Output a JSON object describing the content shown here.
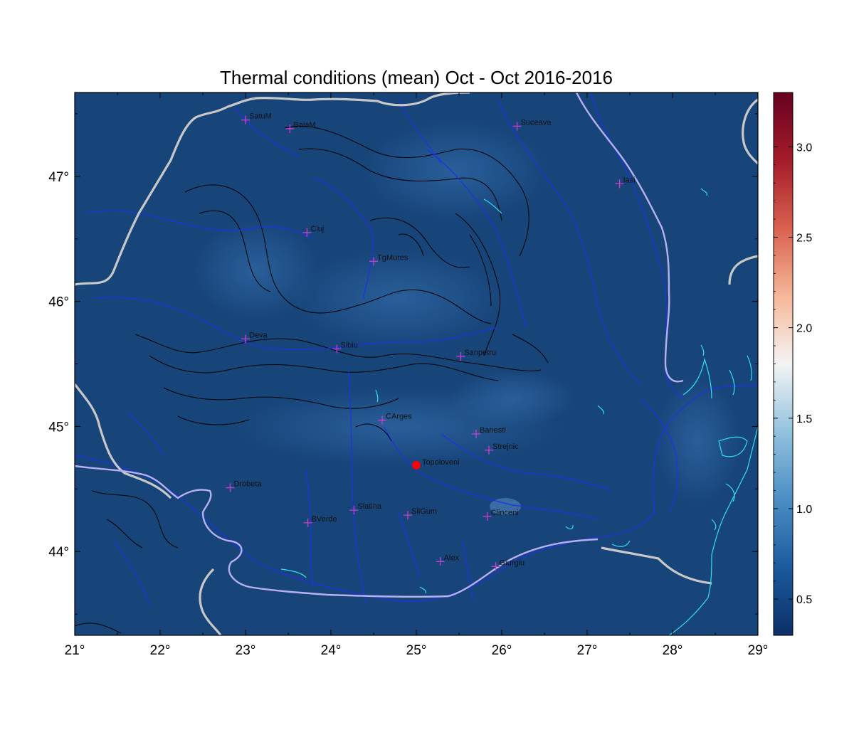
{
  "title": "Thermal conditions (mean) Oct - Oct  2016-2016",
  "map": {
    "lon_range": [
      21,
      29
    ],
    "lat_range": [
      43.33,
      47.67
    ],
    "lon_ticks": [
      {
        "value": 21,
        "label": "21°"
      },
      {
        "value": 22,
        "label": "22°"
      },
      {
        "value": 23,
        "label": "23°"
      },
      {
        "value": 24,
        "label": "24°"
      },
      {
        "value": 25,
        "label": "25°"
      },
      {
        "value": 26,
        "label": "26°"
      },
      {
        "value": 27,
        "label": "27°"
      },
      {
        "value": 28,
        "label": "28°"
      },
      {
        "value": 29,
        "label": "29°"
      }
    ],
    "lat_ticks": [
      {
        "value": 44,
        "label": "44°"
      },
      {
        "value": 45,
        "label": "45°"
      },
      {
        "value": 46,
        "label": "46°"
      },
      {
        "value": 47,
        "label": "47°"
      }
    ],
    "field_color": "#17457a",
    "border_color": "#c8c8c8",
    "river_color": "#1e32e6",
    "contour_color": "#000000",
    "lake_color": "#33e0f0",
    "station_marker_color": "#c040c8",
    "highlight_color": "#ff0000"
  },
  "stations": [
    {
      "name": "SatuM",
      "lon": 23.0,
      "lat": 47.45
    },
    {
      "name": "BaiaM",
      "lon": 23.52,
      "lat": 47.38
    },
    {
      "name": "Suceava",
      "lon": 26.18,
      "lat": 47.4
    },
    {
      "name": "Iasi",
      "lon": 27.38,
      "lat": 46.94
    },
    {
      "name": "Cluj",
      "lon": 23.72,
      "lat": 46.55
    },
    {
      "name": "TgMures",
      "lon": 24.5,
      "lat": 46.32
    },
    {
      "name": "Deva",
      "lon": 23.0,
      "lat": 45.7
    },
    {
      "name": "Sibiu",
      "lon": 24.07,
      "lat": 45.62
    },
    {
      "name": "Sanpetru",
      "lon": 25.52,
      "lat": 45.56
    },
    {
      "name": "CArges",
      "lon": 24.6,
      "lat": 45.05
    },
    {
      "name": "Banesti",
      "lon": 25.7,
      "lat": 44.94
    },
    {
      "name": "Strejnic",
      "lon": 25.85,
      "lat": 44.81
    },
    {
      "name": "Drobeta",
      "lon": 22.82,
      "lat": 44.51
    },
    {
      "name": "Slatina",
      "lon": 24.27,
      "lat": 44.33
    },
    {
      "name": "SilGum",
      "lon": 24.9,
      "lat": 44.29
    },
    {
      "name": "Clinceni",
      "lon": 25.83,
      "lat": 44.28
    },
    {
      "name": "BVerde",
      "lon": 23.73,
      "lat": 44.23
    },
    {
      "name": "Alex",
      "lon": 25.28,
      "lat": 43.92
    },
    {
      "name": "Giurgiu",
      "lon": 25.93,
      "lat": 43.88
    }
  ],
  "highlight": {
    "name": "Topoloveni",
    "lon": 25.0,
    "lat": 44.69
  },
  "colorbar": {
    "range": [
      0.3,
      3.3
    ],
    "ticks": [
      {
        "value": 0.5,
        "label": "0.5"
      },
      {
        "value": 1.0,
        "label": "1.0"
      },
      {
        "value": 1.5,
        "label": "1.5"
      },
      {
        "value": 2.0,
        "label": "2.0"
      },
      {
        "value": 2.5,
        "label": "2.5"
      },
      {
        "value": 3.0,
        "label": "3.0"
      }
    ],
    "colors": [
      "#0b2f66",
      "#1b5a9e",
      "#4a8ec4",
      "#92c2de",
      "#f4f4f4",
      "#f7b799",
      "#d9614e",
      "#a51c2a",
      "#67001f"
    ]
  }
}
